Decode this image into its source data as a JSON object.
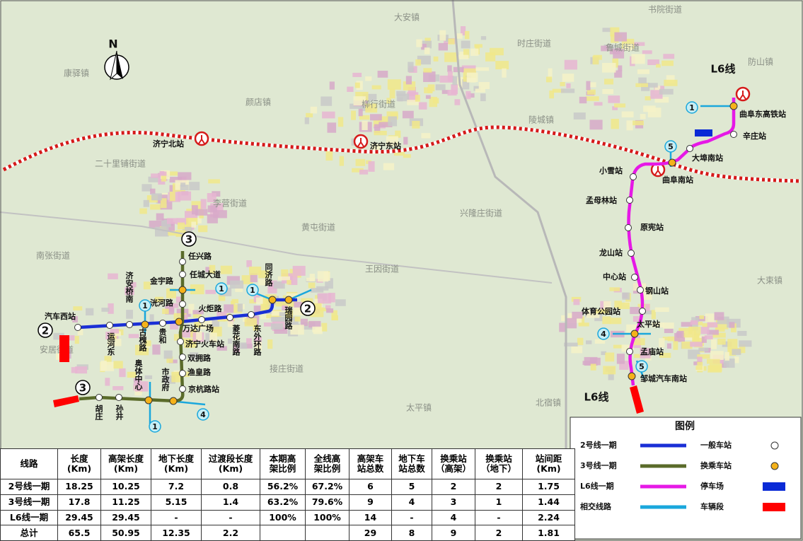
{
  "compass": "N",
  "place_names": [
    "书院街道",
    "大安镇",
    "时庄街道",
    "鲁城街道",
    "防山镇",
    "康驿镇",
    "颜店镇",
    "柳行街道",
    "陵城镇",
    "二十里铺街道",
    "李营街道",
    "南张街道",
    "黄屯街道",
    "王因街道",
    "兴隆庄街道",
    "安居街道",
    "接庄街道",
    "太平镇",
    "北宿镇",
    "大束镇"
  ],
  "rail_stations": [
    "济宁北站",
    "济宁东站",
    "曲阜南站"
  ],
  "line_2": {
    "badges": [
      "2",
      "2"
    ],
    "stations": [
      "汽车西站",
      "运河东",
      "济安桥南",
      "古槐路",
      "贵和",
      "万达广场",
      "火炬路",
      "菱花南路",
      "东外环路",
      "同济路",
      "瑞园路"
    ]
  },
  "line_3": {
    "badges": [
      "3",
      "3"
    ],
    "stations": [
      "任兴路",
      "任城大道",
      "金宇路",
      "洸河路",
      "济宁火车站",
      "双拥路",
      "渔皇路",
      "京杭路站",
      "市政府",
      "奥体中心",
      "孙井",
      "胡庄"
    ]
  },
  "line_L6": {
    "labels": [
      "L6线",
      "L6线"
    ],
    "stations": [
      "曲阜东高铁站",
      "辛庄站",
      "大埠南站",
      "小雪站",
      "孟母林站",
      "原宪站",
      "龙山站",
      "中心站",
      "钢山站",
      "体育公园站",
      "太平站",
      "孟庙站",
      "邹城汽车南站"
    ]
  },
  "transfer_badges": [
    "1",
    "1",
    "1",
    "1",
    "4",
    "1",
    "5",
    "4",
    "5"
  ],
  "table": {
    "header": [
      [
        "线路"
      ],
      [
        "长度",
        "(Km)"
      ],
      [
        "高架长度",
        "(Km)"
      ],
      [
        "地下长度",
        "(Km)"
      ],
      [
        "过渡段长度",
        "(Km)"
      ],
      [
        "本期高",
        "架比例"
      ],
      [
        "全线高",
        "架比例"
      ],
      [
        "高架车",
        "站总数"
      ],
      [
        "地下车",
        "站总数"
      ],
      [
        "换乘站",
        "（高架）"
      ],
      [
        "换乘站",
        "（地下）"
      ],
      [
        "站间距",
        "(Km)"
      ]
    ],
    "rows": [
      [
        "2号线一期",
        "18.25",
        "10.25",
        "7.2",
        "0.8",
        "56.2%",
        "67.2%",
        "6",
        "5",
        "2",
        "2",
        "1.75"
      ],
      [
        "3号线一期",
        "17.8",
        "11.25",
        "5.15",
        "1.4",
        "63.2%",
        "79.6%",
        "9",
        "4",
        "3",
        "1",
        "1.44"
      ],
      [
        "L6线一期",
        "29.45",
        "29.45",
        "-",
        "-",
        "100%",
        "100%",
        "14",
        "-",
        "4",
        "-",
        "2.24"
      ],
      [
        "总计",
        "65.5",
        "50.95",
        "12.35",
        "2.2",
        null,
        null,
        "29",
        "8",
        "9",
        "2",
        "1.81"
      ]
    ]
  },
  "legend": {
    "title": "图例",
    "lines": [
      "2号线一期",
      "3号线一期",
      "L6线一期",
      "相交线路"
    ],
    "symbols": [
      "一般车站",
      "换乘车站",
      "停车场",
      "车辆段"
    ]
  }
}
